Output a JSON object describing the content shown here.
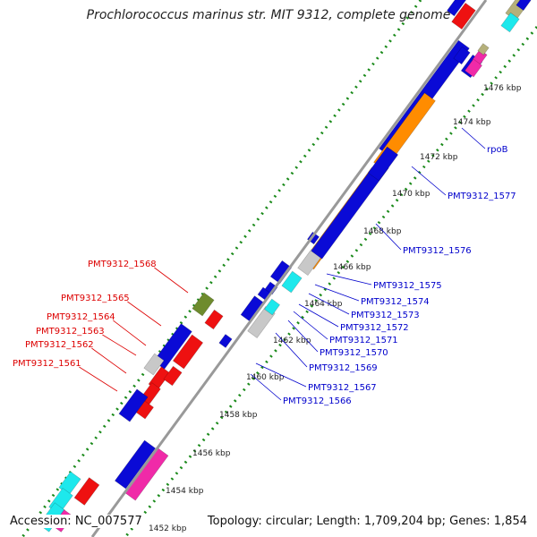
{
  "title": "Prochlorococcus marinus str. MIT 9312, complete genome",
  "footer": {
    "accession": "Accession: NC_007577",
    "topology": "Topology: circular; Length: 1,709,204 bp; Genes: 1,854"
  },
  "colors": {
    "blue": "#0a0ad6",
    "red": "#ee1111",
    "orange": "#ff8c00",
    "cyan": "#1de8ec",
    "gray": "#c8c8c8",
    "olive": "#6e8b2d",
    "pink": "#f02aa8",
    "khaki": "#b5b07a",
    "backbone": "#888888",
    "tick": "#1a8a1a",
    "label_blue": "#0000cc",
    "label_red": "#dd0000"
  },
  "kbp_ticks": [
    "1452 kbp",
    "1454 kbp",
    "1456 kbp",
    "1458 kbp",
    "1460 kbp",
    "1462 kbp",
    "1464 kbp",
    "1466 kbp",
    "1468 kbp",
    "1470 kbp",
    "1472 kbp",
    "1474 kbp",
    "1476 kbp"
  ],
  "gene_labels_right": [
    "rpoB",
    "PMT9312_1577",
    "PMT9312_1576",
    "PMT9312_1575",
    "PMT9312_1574",
    "PMT9312_1573",
    "PMT9312_1572",
    "PMT9312_1571",
    "PMT9312_1570",
    "PMT9312_1569",
    "PMT9312_1567",
    "PMT9312_1566"
  ],
  "gene_labels_left": [
    "PMT9312_1568",
    "PMT9312_1565",
    "PMT9312_1564",
    "PMT9312_1563",
    "PMT9312_1562",
    "PMT9312_1561"
  ]
}
